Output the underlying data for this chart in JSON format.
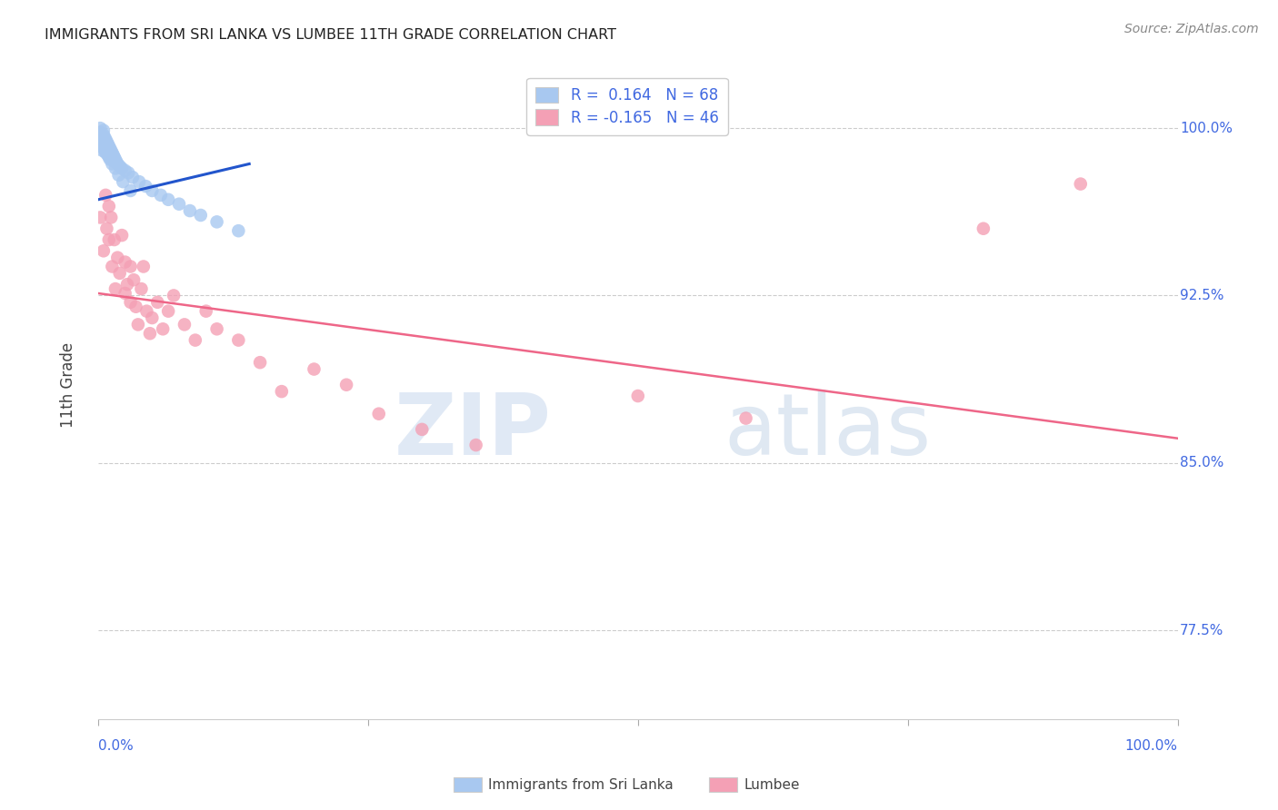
{
  "title": "IMMIGRANTS FROM SRI LANKA VS LUMBEE 11TH GRADE CORRELATION CHART",
  "source": "Source: ZipAtlas.com",
  "ylabel": "11th Grade",
  "ytick_labels": [
    "77.5%",
    "85.0%",
    "92.5%",
    "100.0%"
  ],
  "ytick_values": [
    0.775,
    0.85,
    0.925,
    1.0
  ],
  "xrange": [
    0.0,
    1.0
  ],
  "yrange": [
    0.735,
    1.035
  ],
  "blue_color": "#A8C8F0",
  "pink_color": "#F4A0B5",
  "blue_line_color": "#2255CC",
  "pink_line_color": "#EE6688",
  "text_color": "#4169E1",
  "watermark": "ZIPatlas",
  "blue_scatter_x": [
    0.002,
    0.002,
    0.003,
    0.003,
    0.003,
    0.004,
    0.004,
    0.004,
    0.004,
    0.005,
    0.005,
    0.005,
    0.005,
    0.005,
    0.006,
    0.006,
    0.006,
    0.007,
    0.007,
    0.007,
    0.007,
    0.008,
    0.008,
    0.008,
    0.009,
    0.009,
    0.009,
    0.01,
    0.01,
    0.01,
    0.011,
    0.011,
    0.012,
    0.012,
    0.013,
    0.013,
    0.014,
    0.015,
    0.015,
    0.016,
    0.017,
    0.018,
    0.02,
    0.022,
    0.025,
    0.028,
    0.032,
    0.038,
    0.044,
    0.05,
    0.058,
    0.065,
    0.075,
    0.085,
    0.095,
    0.11,
    0.13,
    0.01,
    0.008,
    0.006,
    0.007,
    0.009,
    0.011,
    0.013,
    0.016,
    0.019,
    0.023,
    0.03
  ],
  "blue_scatter_y": [
    1.0,
    0.998,
    0.997,
    0.995,
    0.993,
    0.996,
    0.994,
    0.992,
    0.99,
    0.999,
    0.997,
    0.995,
    0.993,
    0.991,
    0.996,
    0.994,
    0.992,
    0.995,
    0.993,
    0.991,
    0.989,
    0.994,
    0.992,
    0.99,
    0.993,
    0.991,
    0.989,
    0.992,
    0.99,
    0.988,
    0.991,
    0.989,
    0.99,
    0.988,
    0.989,
    0.987,
    0.988,
    0.987,
    0.985,
    0.986,
    0.985,
    0.984,
    0.983,
    0.982,
    0.981,
    0.98,
    0.978,
    0.976,
    0.974,
    0.972,
    0.97,
    0.968,
    0.966,
    0.963,
    0.961,
    0.958,
    0.954,
    0.987,
    0.989,
    0.991,
    0.99,
    0.988,
    0.986,
    0.984,
    0.982,
    0.979,
    0.976,
    0.972
  ],
  "pink_scatter_x": [
    0.002,
    0.005,
    0.007,
    0.008,
    0.01,
    0.01,
    0.012,
    0.013,
    0.015,
    0.016,
    0.018,
    0.02,
    0.022,
    0.025,
    0.025,
    0.027,
    0.03,
    0.03,
    0.033,
    0.035,
    0.037,
    0.04,
    0.042,
    0.045,
    0.048,
    0.05,
    0.055,
    0.06,
    0.065,
    0.07,
    0.08,
    0.09,
    0.1,
    0.11,
    0.13,
    0.15,
    0.17,
    0.2,
    0.23,
    0.26,
    0.3,
    0.35,
    0.5,
    0.6,
    0.82,
    0.91
  ],
  "pink_scatter_y": [
    0.96,
    0.945,
    0.97,
    0.955,
    0.965,
    0.95,
    0.96,
    0.938,
    0.95,
    0.928,
    0.942,
    0.935,
    0.952,
    0.94,
    0.926,
    0.93,
    0.938,
    0.922,
    0.932,
    0.92,
    0.912,
    0.928,
    0.938,
    0.918,
    0.908,
    0.915,
    0.922,
    0.91,
    0.918,
    0.925,
    0.912,
    0.905,
    0.918,
    0.91,
    0.905,
    0.895,
    0.882,
    0.892,
    0.885,
    0.872,
    0.865,
    0.858,
    0.88,
    0.87,
    0.955,
    0.975
  ],
  "blue_trendline_x": [
    0.0,
    0.14
  ],
  "blue_trendline_y": [
    0.968,
    0.984
  ],
  "pink_trendline_x": [
    0.0,
    1.0
  ],
  "pink_trendline_y": [
    0.926,
    0.861
  ]
}
